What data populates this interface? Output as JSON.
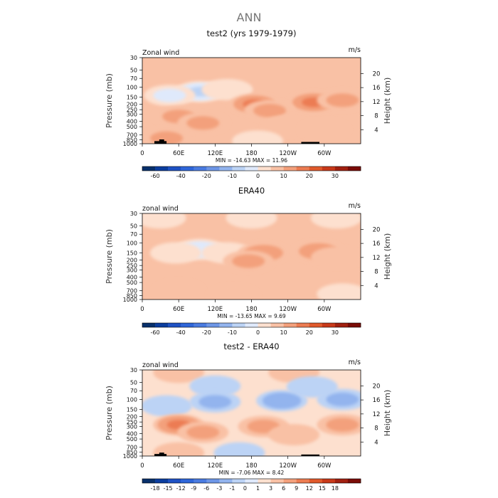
{
  "page": {
    "suptitle": "ANN"
  },
  "colors": {
    "panel_fill": "#fde0cf",
    "text": "#111111"
  },
  "chart_data": [
    {
      "type": "heatmap",
      "title": "test2 (yrs 1979-1979)",
      "left_label": "Zonal wind",
      "units_label": "m/s",
      "ylabel": "Pressure (mb)",
      "y2label": "Height (km)",
      "x_ticks": [
        "0",
        "60E",
        "120E",
        "180",
        "120W",
        "60W"
      ],
      "x_tick_lons": [
        0,
        60,
        120,
        180,
        240,
        300
      ],
      "xlim": [
        0,
        360
      ],
      "y_ticks": [
        "30",
        "50",
        "70",
        "100",
        "150",
        "200",
        "250",
        "300",
        "400",
        "500",
        "700",
        "850",
        "1000"
      ],
      "y_tick_p": [
        30,
        50,
        70,
        100,
        150,
        200,
        250,
        300,
        400,
        500,
        700,
        850,
        1000
      ],
      "ylim_p": [
        1000,
        30
      ],
      "height_ticks": [
        "20",
        "16",
        "12",
        "8",
        "4"
      ],
      "height_tick_km": [
        20,
        16,
        12,
        8,
        4
      ],
      "stats_text": "MIN = -14.63   MAX =  11.96",
      "min": -14.63,
      "max": 11.96,
      "colorbar": {
        "levels": [
          -70,
          -60,
          -50,
          -40,
          -30,
          -20,
          -15,
          -10,
          -5,
          0,
          5,
          10,
          15,
          20,
          25,
          30
        ],
        "labels": [
          "-60",
          "-40",
          "-20",
          "-10",
          "0",
          "10",
          "20",
          "30"
        ],
        "label_idx": [
          1,
          3,
          5,
          7,
          9,
          11,
          13,
          15
        ],
        "colors": [
          "#08306b",
          "#0b3d9e",
          "#1f52c4",
          "#2f66d9",
          "#4a7be0",
          "#6d96e6",
          "#93b4ee",
          "#bcd3f5",
          "#dfe9fb",
          "#fde0cf",
          "#f9c1a5",
          "#f3a07c",
          "#ec7c52",
          "#e05a2c",
          "#c8391a",
          "#a12010",
          "#7a0c07"
        ]
      },
      "features": [
        {
          "lon": 95,
          "p": 120,
          "val": -11
        },
        {
          "lon": 45,
          "p": 140,
          "val": -6
        },
        {
          "lon": 140,
          "p": 110,
          "val": -5
        },
        {
          "lon": 185,
          "p": 200,
          "val": 11
        },
        {
          "lon": 282,
          "p": 185,
          "val": 11
        },
        {
          "lon": 330,
          "p": 170,
          "val": 6
        },
        {
          "lon": 60,
          "p": 330,
          "val": 6
        },
        {
          "lon": 100,
          "p": 430,
          "val": 5
        },
        {
          "lon": 210,
          "p": 260,
          "val": 5
        },
        {
          "lon": 240,
          "p": 480,
          "val": 3
        },
        {
          "lon": 190,
          "p": 900,
          "val": -3
        },
        {
          "lon": 300,
          "p": 560,
          "val": 4
        },
        {
          "lon": 40,
          "p": 800,
          "val": 5
        }
      ],
      "topography": [
        {
          "lon_start": 20,
          "lon_end": 40,
          "p_top": 900
        },
        {
          "lon_start": 28,
          "lon_end": 36,
          "p_top": 840
        },
        {
          "lon_start": 262,
          "lon_end": 292,
          "p_top": 930
        }
      ]
    },
    {
      "type": "heatmap",
      "title": "ERA40",
      "left_label": "zonal wind",
      "units_label": "m/s",
      "ylabel": "Pressure (mb)",
      "y2label": "Height (km)",
      "x_ticks": [
        "0",
        "60E",
        "120E",
        "180",
        "120W",
        "60W"
      ],
      "x_tick_lons": [
        0,
        60,
        120,
        180,
        240,
        300
      ],
      "xlim": [
        0,
        360
      ],
      "y_ticks": [
        "30",
        "50",
        "70",
        "100",
        "150",
        "200",
        "250",
        "300",
        "400",
        "500",
        "700",
        "850",
        "1000"
      ],
      "y_tick_p": [
        30,
        50,
        70,
        100,
        150,
        200,
        250,
        300,
        400,
        500,
        700,
        850,
        1000
      ],
      "ylim_p": [
        1000,
        30
      ],
      "height_ticks": [
        "20",
        "16",
        "12",
        "8",
        "4"
      ],
      "height_tick_km": [
        20,
        16,
        12,
        8,
        4
      ],
      "stats_text": "MIN = -13.65   MAX =   9.69",
      "min": -13.65,
      "max": 9.69,
      "colorbar": {
        "levels": [
          -70,
          -60,
          -50,
          -40,
          -30,
          -20,
          -15,
          -10,
          -5,
          0,
          5,
          10,
          15,
          20,
          25,
          30
        ],
        "labels": [
          "-60",
          "-40",
          "-20",
          "-10",
          "0",
          "10",
          "20",
          "30"
        ],
        "label_idx": [
          1,
          3,
          5,
          7,
          9,
          11,
          13,
          15
        ],
        "colors": [
          "#08306b",
          "#0b3d9e",
          "#1f52c4",
          "#2f66d9",
          "#4a7be0",
          "#6d96e6",
          "#93b4ee",
          "#bcd3f5",
          "#dfe9fb",
          "#fde0cf",
          "#f9c1a5",
          "#f3a07c",
          "#ec7c52",
          "#e05a2c",
          "#c8391a",
          "#a12010",
          "#7a0c07"
        ]
      },
      "features": [
        {
          "lon": 30,
          "p": 36,
          "val": -4
        },
        {
          "lon": 180,
          "p": 36,
          "val": -4
        },
        {
          "lon": 320,
          "p": 36,
          "val": -4
        },
        {
          "lon": 95,
          "p": 130,
          "val": -10
        },
        {
          "lon": 55,
          "p": 150,
          "val": -5
        },
        {
          "lon": 140,
          "p": 150,
          "val": -5
        },
        {
          "lon": 200,
          "p": 150,
          "val": 9
        },
        {
          "lon": 290,
          "p": 140,
          "val": 8
        },
        {
          "lon": 175,
          "p": 210,
          "val": 5
        },
        {
          "lon": 320,
          "p": 180,
          "val": 4
        },
        {
          "lon": 60,
          "p": 700,
          "val": 4
        },
        {
          "lon": 150,
          "p": 850,
          "val": 3
        },
        {
          "lon": 330,
          "p": 800,
          "val": -3
        }
      ],
      "topography": []
    },
    {
      "type": "heatmap",
      "title": "test2 - ERA40",
      "left_label": "zonal wind",
      "units_label": "m/s",
      "ylabel": "Pressure (mb)",
      "y2label": "Height (km)",
      "x_ticks": [
        "0",
        "60E",
        "120E",
        "180",
        "120W",
        "60W"
      ],
      "x_tick_lons": [
        0,
        60,
        120,
        180,
        240,
        300
      ],
      "xlim": [
        0,
        360
      ],
      "y_ticks": [
        "30",
        "50",
        "70",
        "100",
        "150",
        "200",
        "250",
        "300",
        "400",
        "500",
        "700",
        "850",
        "1000"
      ],
      "y_tick_p": [
        30,
        50,
        70,
        100,
        150,
        200,
        250,
        300,
        400,
        500,
        700,
        850,
        1000
      ],
      "ylim_p": [
        1000,
        30
      ],
      "height_ticks": [
        "20",
        "16",
        "12",
        "8",
        "4"
      ],
      "height_tick_km": [
        20,
        16,
        12,
        8,
        4
      ],
      "stats_text": "MIN = -7.06   MAX =   8.42",
      "min": -7.06,
      "max": 8.42,
      "colorbar": {
        "levels": [
          -21,
          -18,
          -15,
          -12,
          -9,
          -6,
          -3,
          -1,
          0,
          1,
          3,
          6,
          9,
          12,
          15,
          18,
          21
        ],
        "labels": [
          "-18",
          "-15",
          "-12",
          "-9",
          "-6",
          "-3",
          "-1",
          "0",
          "1",
          "3",
          "6",
          "9",
          "12",
          "15",
          "18"
        ],
        "label_idx": [
          1,
          2,
          3,
          4,
          5,
          6,
          7,
          8,
          9,
          10,
          11,
          12,
          13,
          14,
          15
        ],
        "colors": [
          "#08306b",
          "#0b3d9e",
          "#1f52c4",
          "#2f66d9",
          "#4a7be0",
          "#6d96e6",
          "#93b4ee",
          "#bcd3f5",
          "#dfe9fb",
          "#fde0cf",
          "#f9c1a5",
          "#f3a07c",
          "#ec7c52",
          "#e05a2c",
          "#c8391a",
          "#a12010",
          "#7a0c07"
        ]
      },
      "features": [
        {
          "lon": 60,
          "p": 33,
          "val": 2
        },
        {
          "lon": 250,
          "p": 33,
          "val": 2
        },
        {
          "lon": 120,
          "p": 58,
          "val": -2
        },
        {
          "lon": 280,
          "p": 60,
          "val": -2
        },
        {
          "lon": 230,
          "p": 105,
          "val": -6
        },
        {
          "lon": 120,
          "p": 110,
          "val": -4
        },
        {
          "lon": 330,
          "p": 100,
          "val": -4
        },
        {
          "lon": 40,
          "p": 130,
          "val": -2
        },
        {
          "lon": 60,
          "p": 280,
          "val": 7
        },
        {
          "lon": 100,
          "p": 380,
          "val": 4
        },
        {
          "lon": 200,
          "p": 300,
          "val": 3
        },
        {
          "lon": 330,
          "p": 280,
          "val": 4
        },
        {
          "lon": 250,
          "p": 420,
          "val": 2
        },
        {
          "lon": 160,
          "p": 880,
          "val": -2
        },
        {
          "lon": 60,
          "p": 880,
          "val": 2
        }
      ],
      "topography": [
        {
          "lon_start": 20,
          "lon_end": 40,
          "p_top": 920
        },
        {
          "lon_start": 28,
          "lon_end": 36,
          "p_top": 870
        },
        {
          "lon_start": 262,
          "lon_end": 292,
          "p_top": 940
        }
      ]
    }
  ]
}
